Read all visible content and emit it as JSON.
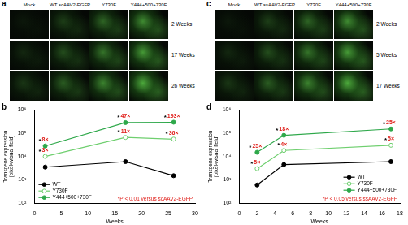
{
  "image_panels": [
    {
      "letter": "a",
      "columns": [
        "Mock",
        "WT scAAV2-EGFP",
        "Y730F",
        "Y444+500+730F"
      ],
      "rows": [
        "2 Weeks",
        "17 Weeks",
        "26 Weeks"
      ]
    },
    {
      "letter": "c",
      "columns": [
        "Mock",
        "WT ssAAV2-EGFP",
        "Y730F",
        "Y444+500+730F"
      ],
      "rows": [
        "2 Weeks",
        "5 Weeks",
        "17 Weeks"
      ]
    }
  ],
  "chart_data": [
    {
      "letter": "b",
      "type": "line",
      "x_label": "Weeks",
      "y_label": "Transgene expression (pixel²/visual field)",
      "log": "y",
      "grid": false,
      "legend": "lower left",
      "xlim": [
        0,
        30
      ],
      "xticks": [
        0,
        5,
        10,
        15,
        20,
        25,
        30
      ],
      "ylim": [
        100,
        1000000
      ],
      "yticks": [
        {
          "value": 100,
          "label": "10²"
        },
        {
          "value": 1000,
          "label": "10³"
        },
        {
          "value": 10000,
          "label": "10⁴"
        },
        {
          "value": 100000,
          "label": "10⁵"
        },
        {
          "value": 1000000,
          "label": "10⁶"
        }
      ],
      "note": "*P < 0.01 versus scAAV2-EGFP",
      "series": [
        {
          "name": "WT",
          "color": "#000000",
          "marker": "circle",
          "x": [
            2,
            17,
            26
          ],
          "values": [
            3500,
            6000,
            1500
          ]
        },
        {
          "name": "Y730F",
          "color": "#6fcf6f",
          "marker": "open_circle",
          "x": [
            2,
            17,
            26
          ],
          "values": [
            10000,
            65000,
            55000
          ],
          "significance": [
            "*",
            "*",
            "*"
          ],
          "fold_labels": [
            "3×",
            "11×",
            "36×"
          ]
        },
        {
          "name": "Y444+500+730F",
          "color": "#2ea84a",
          "marker": "circle",
          "x": [
            2,
            17,
            26
          ],
          "values": [
            28000,
            280000,
            290000
          ],
          "significance": [
            "*",
            "*",
            "*"
          ],
          "fold_labels": [
            "8×",
            "47×",
            "193×"
          ]
        }
      ]
    },
    {
      "letter": "d",
      "type": "line",
      "x_label": "Weeks",
      "y_label": "Transgene expression (pixel²/visual field)",
      "log": "y",
      "grid": false,
      "legend": "lower right",
      "xlim": [
        0,
        18
      ],
      "xticks": [
        0,
        2,
        4,
        6,
        8,
        10,
        12,
        14,
        16,
        18
      ],
      "ylim": [
        100,
        1000000
      ],
      "yticks": [
        {
          "value": 100,
          "label": "10²"
        },
        {
          "value": 1000,
          "label": "10³"
        },
        {
          "value": 10000,
          "label": "10⁴"
        },
        {
          "value": 100000,
          "label": "10⁵"
        },
        {
          "value": 1000000,
          "label": "10⁶"
        }
      ],
      "note": "*P < 0.05 versus ssAAV2-EGFP",
      "series": [
        {
          "name": "WT",
          "color": "#000000",
          "marker": "circle",
          "x": [
            2,
            5,
            17
          ],
          "values": [
            600,
            4500,
            6000
          ]
        },
        {
          "name": "Y730F",
          "color": "#6fcf6f",
          "marker": "open_circle",
          "x": [
            2,
            5,
            17
          ],
          "values": [
            3000,
            18000,
            30000
          ],
          "significance": [
            "*",
            "*",
            "*"
          ],
          "fold_labels": [
            "5×",
            "4×",
            "5×"
          ]
        },
        {
          "name": "Y444+500+730F",
          "color": "#2ea84a",
          "marker": "circle",
          "x": [
            2,
            5,
            17
          ],
          "values": [
            15000,
            80000,
            150000
          ],
          "significance": [
            "*",
            "*",
            "*"
          ],
          "fold_labels": [
            "25×",
            "18×",
            "25×"
          ]
        }
      ]
    }
  ]
}
